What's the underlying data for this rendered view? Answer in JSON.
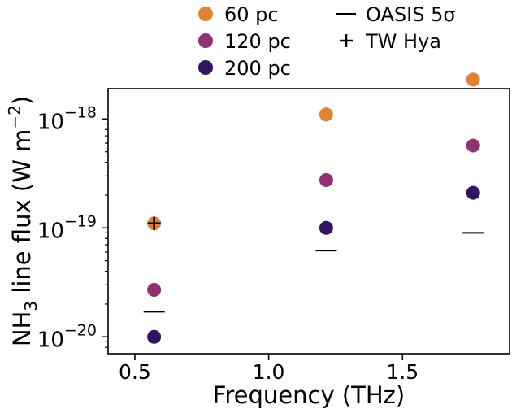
{
  "chart_data": {
    "type": "scatter",
    "xlabel": "Frequency (THz)",
    "ylabel_main": "NH",
    "ylabel_sub": "3",
    "ylabel_rest": " line flux (W m",
    "ylabel_sup": "−2",
    "ylabel_close": ")",
    "x_scale": "linear",
    "y_scale": "log",
    "xlim": [
      0.4,
      1.9
    ],
    "ylim": [
      7e-21,
      1.9e-18
    ],
    "x_ticks": [
      {
        "value": 0.5,
        "label": "0.5"
      },
      {
        "value": 1.0,
        "label": "1.0"
      },
      {
        "value": 1.5,
        "label": "1.5"
      }
    ],
    "y_ticks": [
      {
        "value": 1e-20,
        "base": "10",
        "exp": "−20"
      },
      {
        "value": 1e-19,
        "base": "10",
        "exp": "−19"
      },
      {
        "value": 1e-18,
        "base": "10",
        "exp": "−18"
      }
    ],
    "grid": false,
    "legend_position": "above plot",
    "series": [
      {
        "name": "60 pc",
        "color": "#e0832e",
        "x": [
          0.572,
          1.215,
          1.764
        ],
        "y": [
          1.1e-19,
          1.1e-18,
          2.3e-18
        ]
      },
      {
        "name": "120 pc",
        "color": "#8e3272",
        "x": [
          0.572,
          1.215,
          1.764
        ],
        "y": [
          2.7e-20,
          2.75e-19,
          5.7e-19
        ]
      },
      {
        "name": "200 pc",
        "color": "#33145e",
        "x": [
          0.572,
          1.215,
          1.764
        ],
        "y": [
          1e-20,
          1e-19,
          2.1e-19
        ]
      }
    ],
    "oasis_limit": {
      "name": "OASIS 5σ",
      "x": [
        0.572,
        1.215,
        1.764
      ],
      "y": [
        1.7e-20,
        6.2e-20,
        9e-20
      ]
    },
    "tw_hya": {
      "name": "TW Hya",
      "x": 0.572,
      "y": 1.1e-19
    }
  }
}
